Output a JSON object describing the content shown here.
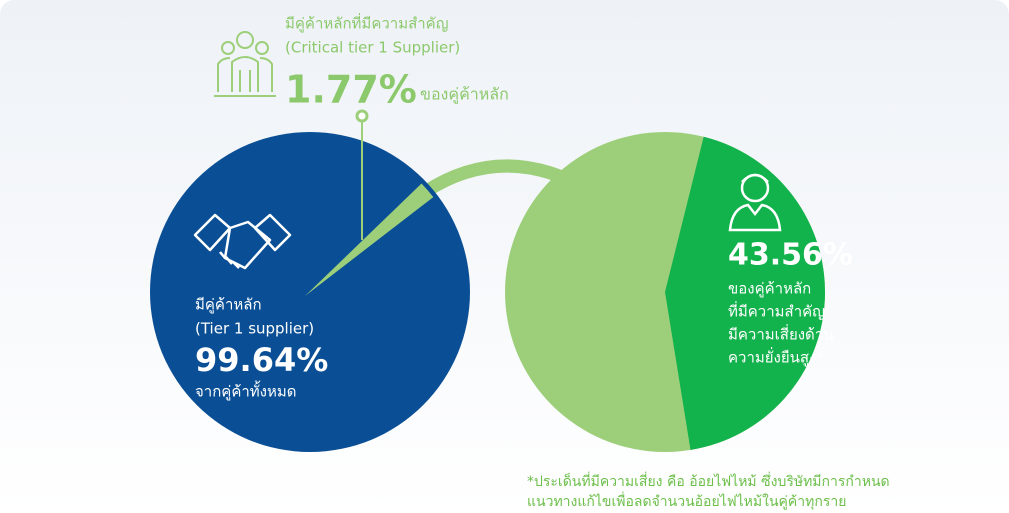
{
  "critical": {
    "line1": "มีคู่ค้าหลักที่มีความสำคัญ",
    "line2": "(Critical tier 1 Supplier)",
    "value": "1.77%",
    "suffix": "ของคู่ค้าหลัก"
  },
  "tier1": {
    "line1": "มีคู่ค้าหลัก",
    "line2": "(Tier 1 supplier)",
    "value": "99.64%",
    "suffix": "จากคู่ค้าทั้งหมด"
  },
  "risk": {
    "value": "43.56%",
    "lines": [
      "ของคู่ค้าหลัก",
      "ที่มีความสำคัญ",
      "มีความเสี่ยงด้าน",
      "ความยั่งยืนสูง*"
    ]
  },
  "footnote": [
    "*ประเด็นที่มีความเสี่ยง คือ อ้อยไฟไหม้ ซึ่งบริษัทมีการกำหนด",
    "แนวทางแก้ไขเพื่อลดจำนวนอ้อยไฟไหม้ในคู่ค้าทุกราย"
  ]
}
